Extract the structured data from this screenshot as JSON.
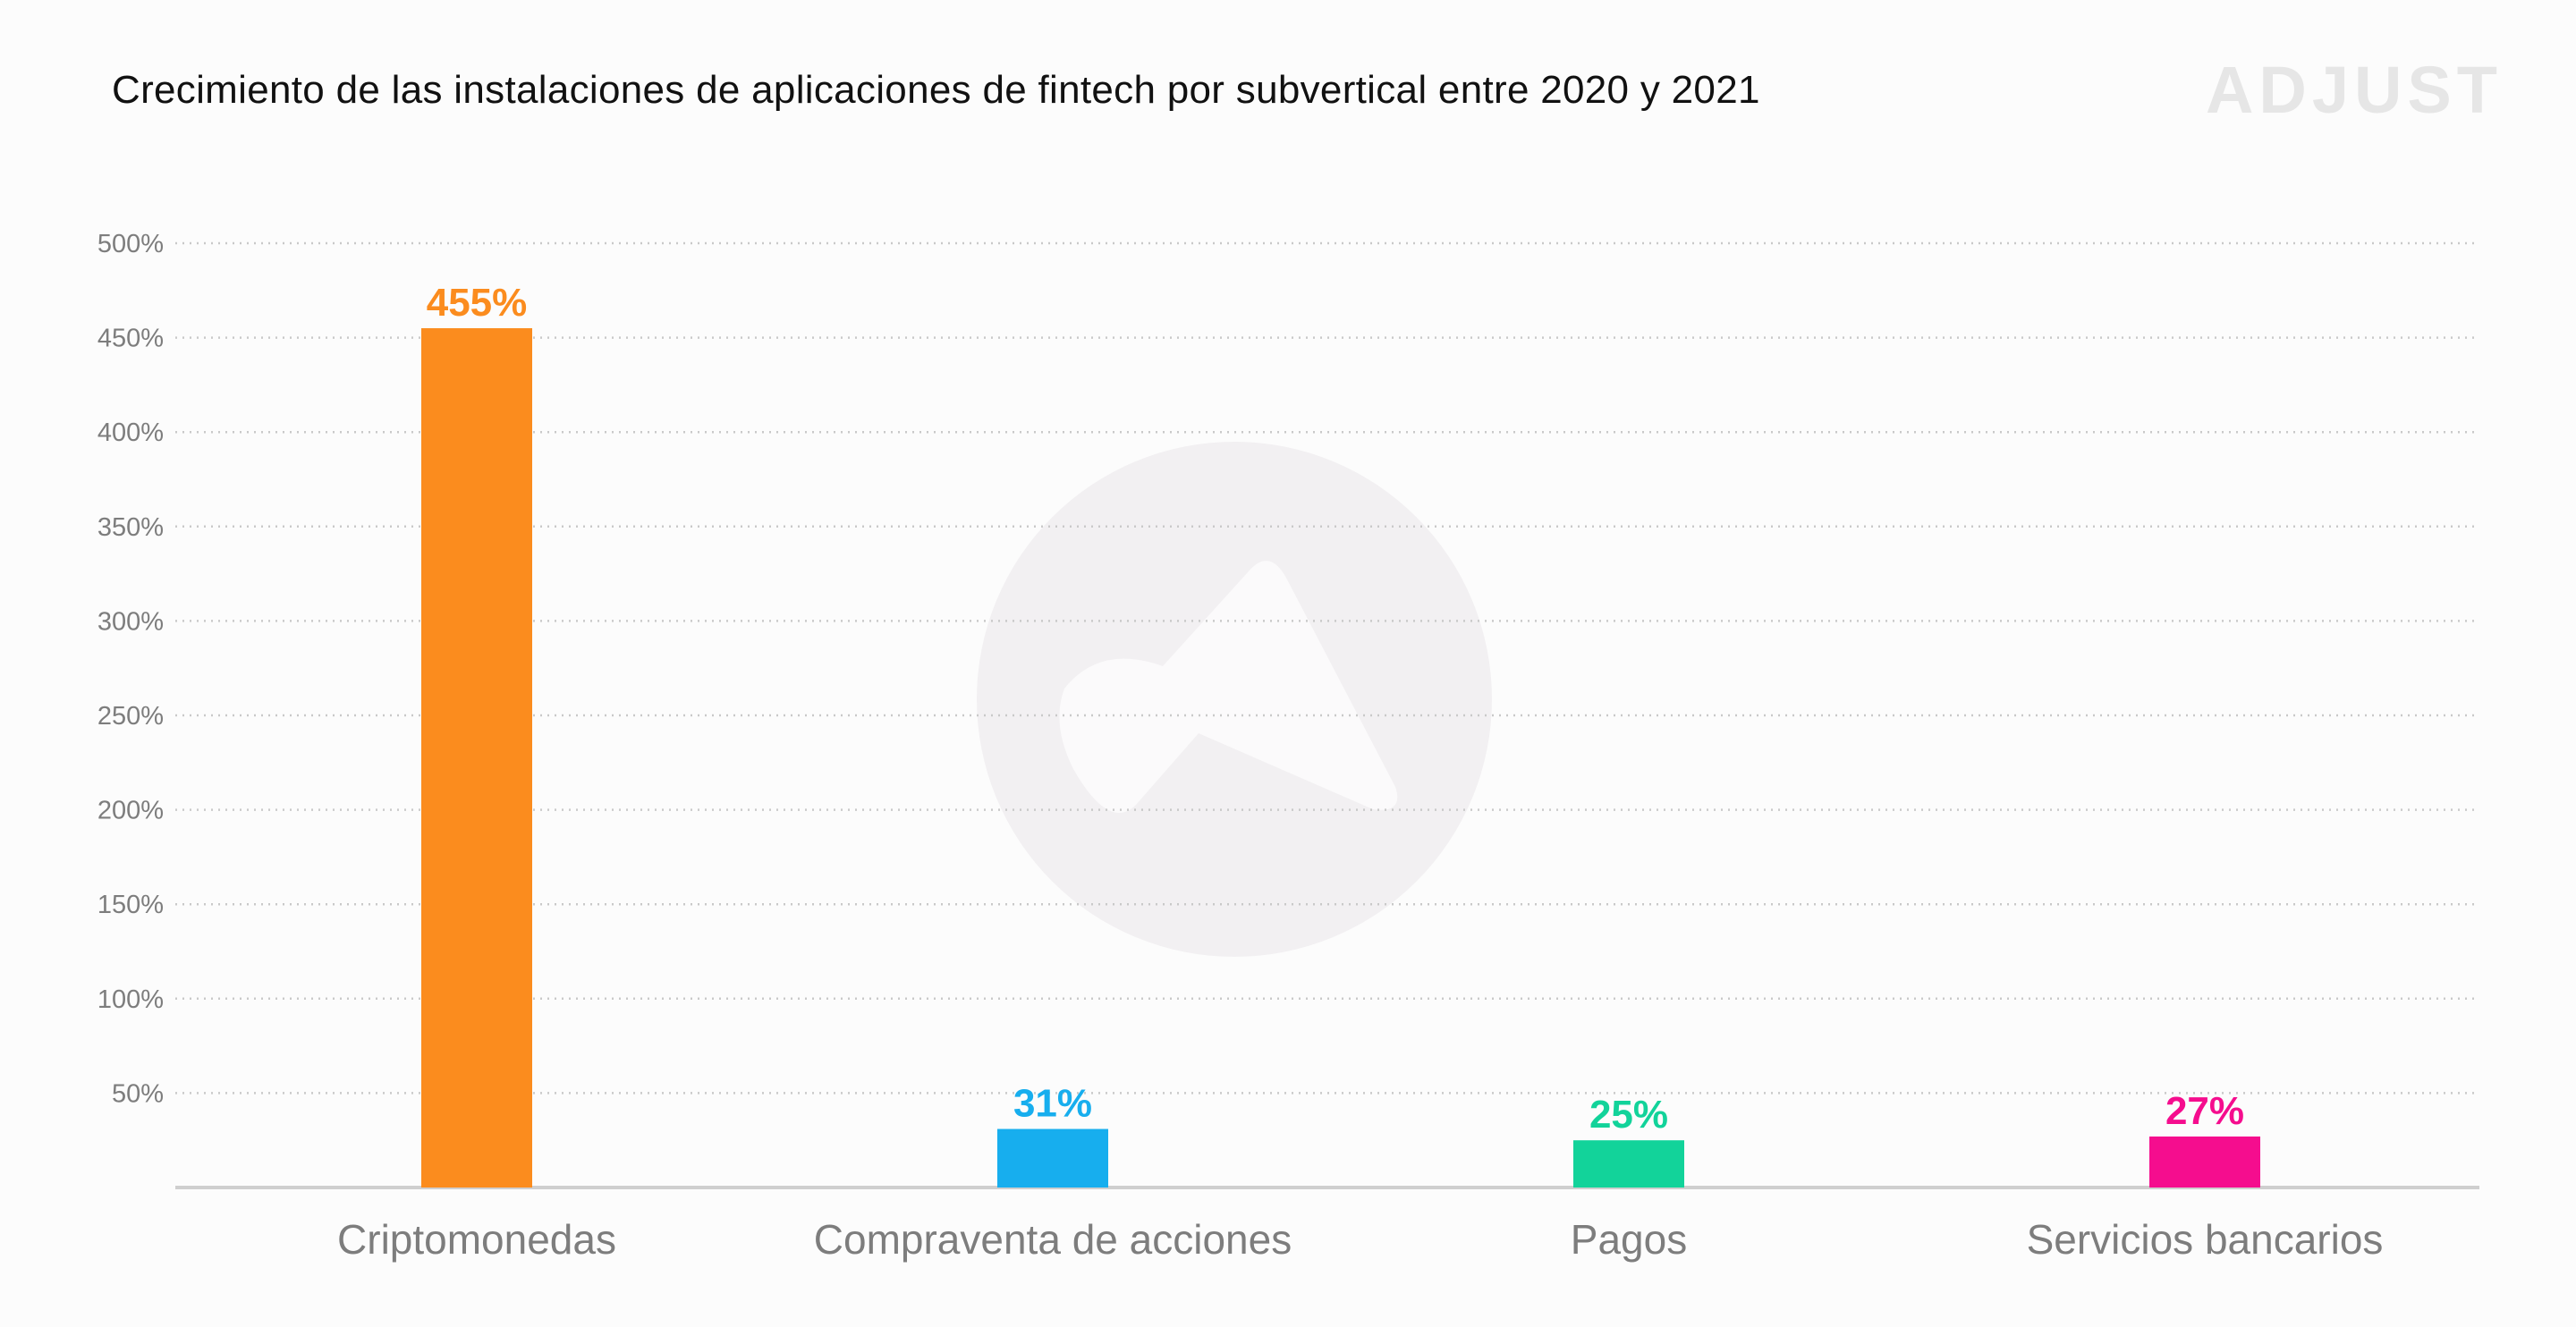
{
  "chart_data": {
    "type": "bar",
    "title": "Crecimiento de las instalaciones de aplicaciones de fintech por subvertical entre 2020 y 2021",
    "xlabel": "",
    "ylabel": "",
    "categories": [
      "Criptomonedas",
      "Compraventa de acciones",
      "Pagos",
      "Servicios bancarios"
    ],
    "values": [
      455,
      31,
      25,
      27
    ],
    "value_labels": [
      "455%",
      "31%",
      "25%",
      "27%"
    ],
    "colors": [
      "#fb8c1e",
      "#17aeee",
      "#12d39a",
      "#f50d8e"
    ],
    "ylim": [
      0,
      500
    ],
    "yticks": [
      50,
      100,
      150,
      200,
      250,
      300,
      350,
      400,
      450,
      500
    ],
    "ytick_labels": [
      "50%",
      "100%",
      "150%",
      "200%",
      "250%",
      "300%",
      "350%",
      "400%",
      "450%",
      "500%"
    ],
    "grid": true,
    "legend": "none"
  },
  "brand": {
    "name": "ADJUST"
  }
}
